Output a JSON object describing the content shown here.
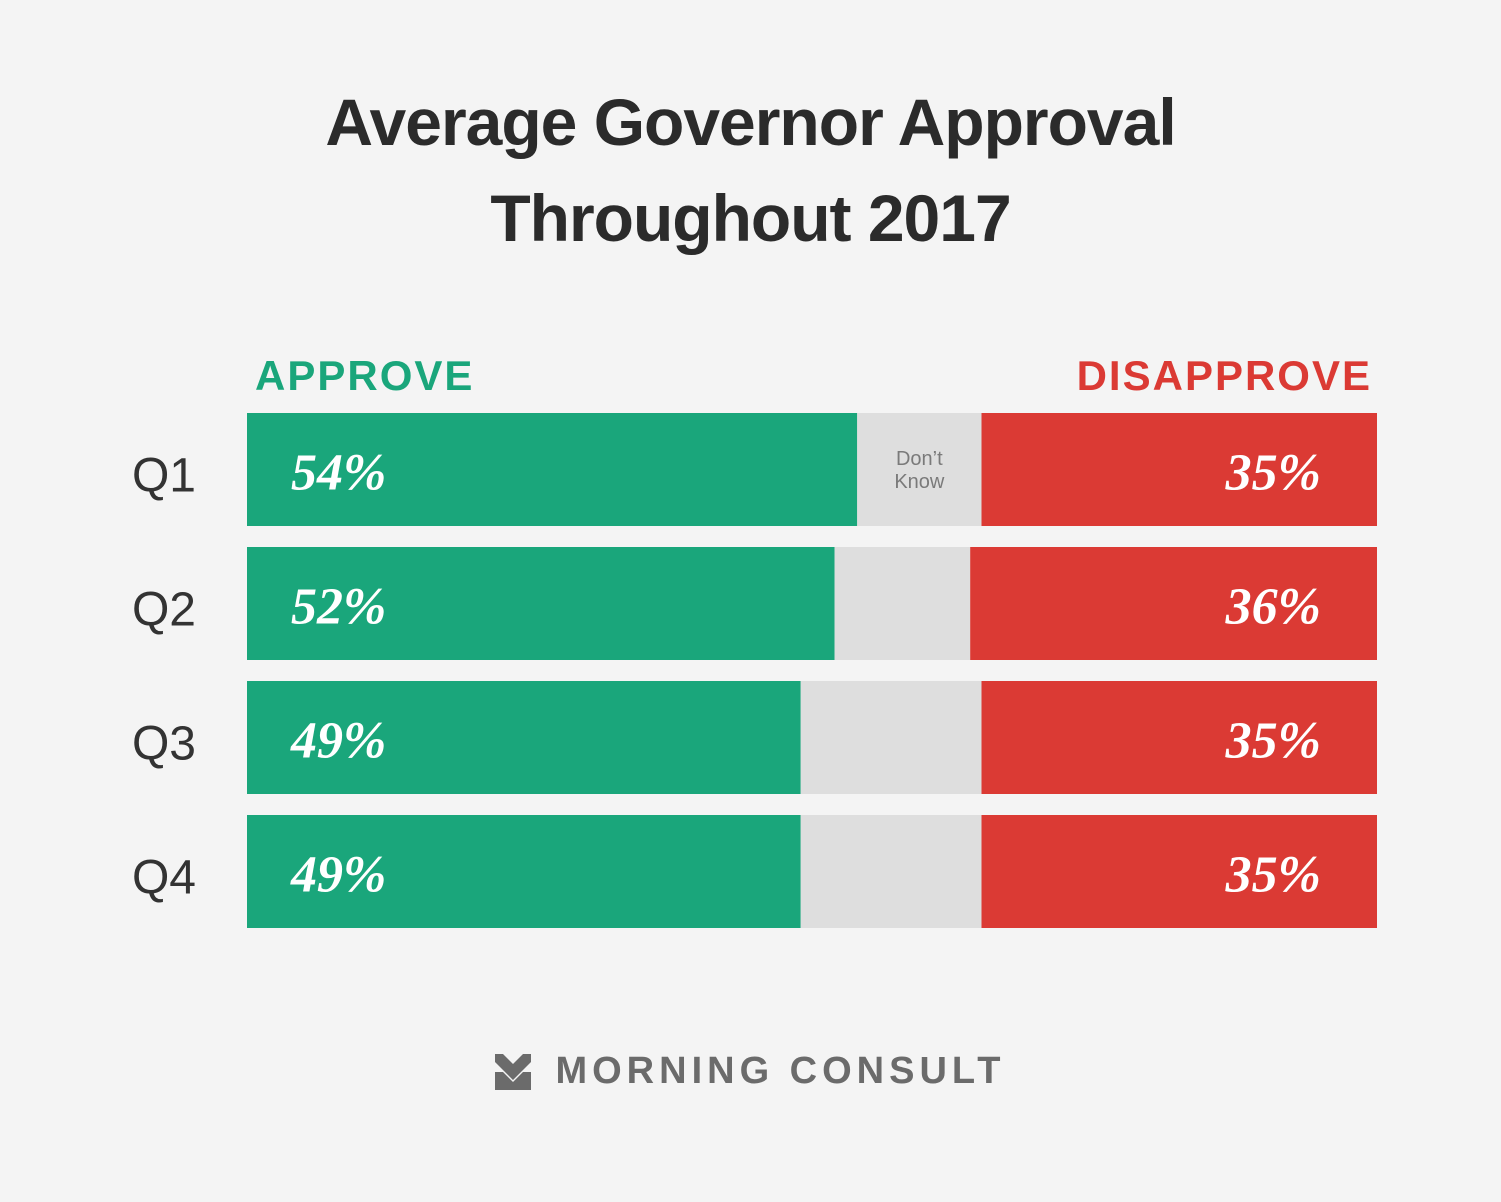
{
  "title_lines": [
    "Average Governor Approval",
    "Throughout 2017"
  ],
  "legend": {
    "approve": "APPROVE",
    "disapprove": "DISAPPROVE"
  },
  "colors": {
    "approve": "#1aa67b",
    "dont_know": "#dedede",
    "disapprove": "#db3a34",
    "title": "#2b2b2b",
    "row_label": "#333333",
    "dont_know_label": "#7a7a7a",
    "footer": "#6b6b6b"
  },
  "dont_know_label_lines": [
    "Don’t",
    "Know"
  ],
  "chart_data": {
    "type": "bar",
    "orientation": "horizontal-stacked",
    "title": "Average Governor Approval Throughout 2017",
    "categories": [
      "Q1",
      "Q2",
      "Q3",
      "Q4"
    ],
    "series": [
      {
        "name": "APPROVE",
        "values": [
          54,
          52,
          49,
          49
        ],
        "labels": [
          "54%",
          "52%",
          "49%",
          "49%"
        ]
      },
      {
        "name": "Don’t Know",
        "values": [
          11,
          12,
          16,
          16
        ]
      },
      {
        "name": "DISAPPROVE",
        "values": [
          35,
          36,
          35,
          35
        ],
        "labels": [
          "35%",
          "36%",
          "35%",
          "35%"
        ]
      }
    ],
    "xlim": [
      0,
      100
    ],
    "grid": false,
    "legend_position": "top"
  },
  "footer": {
    "brand": "MORNING CONSULT",
    "logo_icon": "chevron-double-down-icon"
  }
}
